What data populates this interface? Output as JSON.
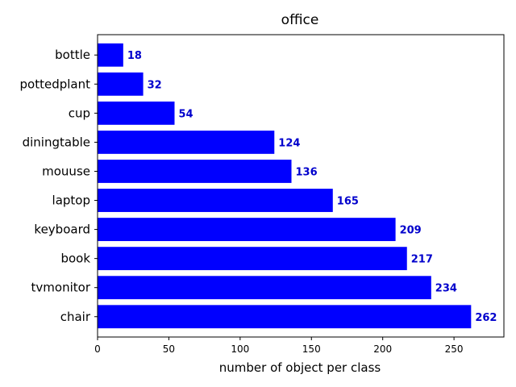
{
  "chart_data": {
    "type": "bar",
    "orientation": "horizontal",
    "title": "office",
    "xlabel": "number of object per class",
    "ylabel": "",
    "xlim": [
      0,
      285
    ],
    "xticks": [
      0,
      50,
      100,
      150,
      200,
      250
    ],
    "grid": false,
    "categories": [
      "bottle",
      "pottedplant",
      "cup",
      "diningtable",
      "mouuse",
      "laptop",
      "keyboard",
      "book",
      "tvmonitor",
      "chair"
    ],
    "values": [
      18,
      32,
      54,
      124,
      136,
      165,
      209,
      217,
      234,
      262
    ],
    "data_labels": true,
    "colors": {
      "bar": "#0000ff",
      "label": "#0000cc"
    }
  }
}
